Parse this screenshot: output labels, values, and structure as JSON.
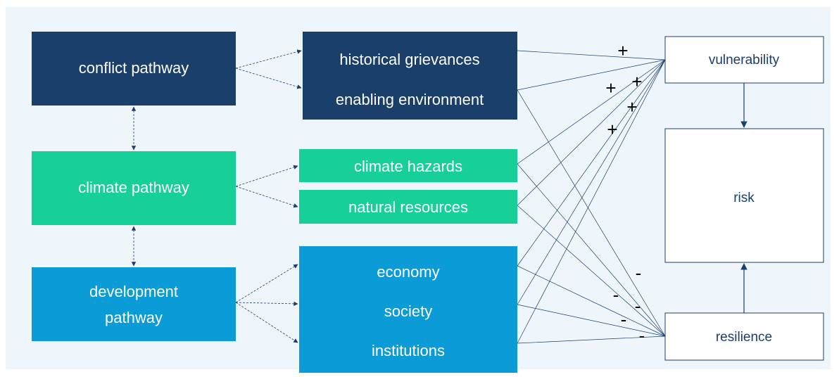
{
  "nodes": [
    {
      "lines": [
        "conflict pathway"
      ]
    },
    {
      "lines": [
        "climate pathway"
      ]
    },
    {
      "lines": [
        "development",
        "pathway"
      ]
    },
    {
      "lines": [
        "historical grievances",
        "enabling environment"
      ]
    },
    {
      "lines": [
        "climate hazards"
      ]
    },
    {
      "lines": [
        "natural resources"
      ]
    },
    {
      "lines": [
        "economy",
        "society",
        "institutions"
      ]
    },
    {
      "lines": [
        "vulnerability"
      ]
    },
    {
      "lines": [
        "risk"
      ]
    },
    {
      "lines": [
        "resilience"
      ]
    }
  ],
  "signs": [
    "+",
    "+",
    "+",
    "+",
    "+",
    "-",
    "-",
    "-",
    "-",
    "-"
  ]
}
